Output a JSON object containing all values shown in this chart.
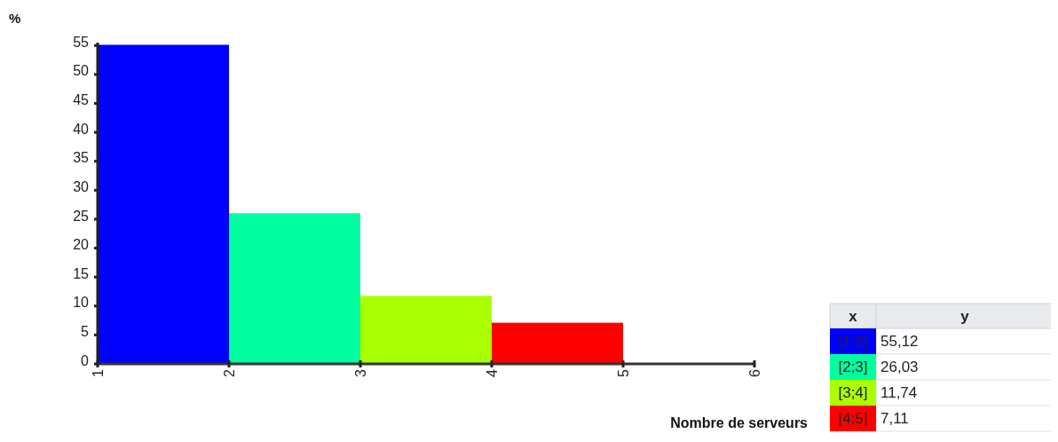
{
  "chart_data": {
    "type": "histogram",
    "ylabel": "%",
    "xlabel": "Nombre de serveurs",
    "bins": [
      1,
      2,
      3,
      4,
      5
    ],
    "values": [
      55.12,
      26.03,
      11.74,
      7.11
    ],
    "colors": [
      "#0000ff",
      "#00ffa0",
      "#aaff00",
      "#ff0000"
    ],
    "annotations": [
      "x",
      "y",
      "[1;2]",
      "55,12",
      "[2;3]",
      "26,03",
      "[3;4]",
      "11,74",
      "[4;5]",
      "7,11"
    ],
    "xlim": [
      1,
      6
    ],
    "xticks": [
      1,
      2,
      3,
      4,
      5,
      6
    ],
    "ylim": [
      0,
      55.5
    ],
    "yticks": [
      0,
      5,
      10,
      15,
      20,
      25,
      30,
      35,
      40,
      45,
      50,
      55
    ],
    "grid": false
  }
}
